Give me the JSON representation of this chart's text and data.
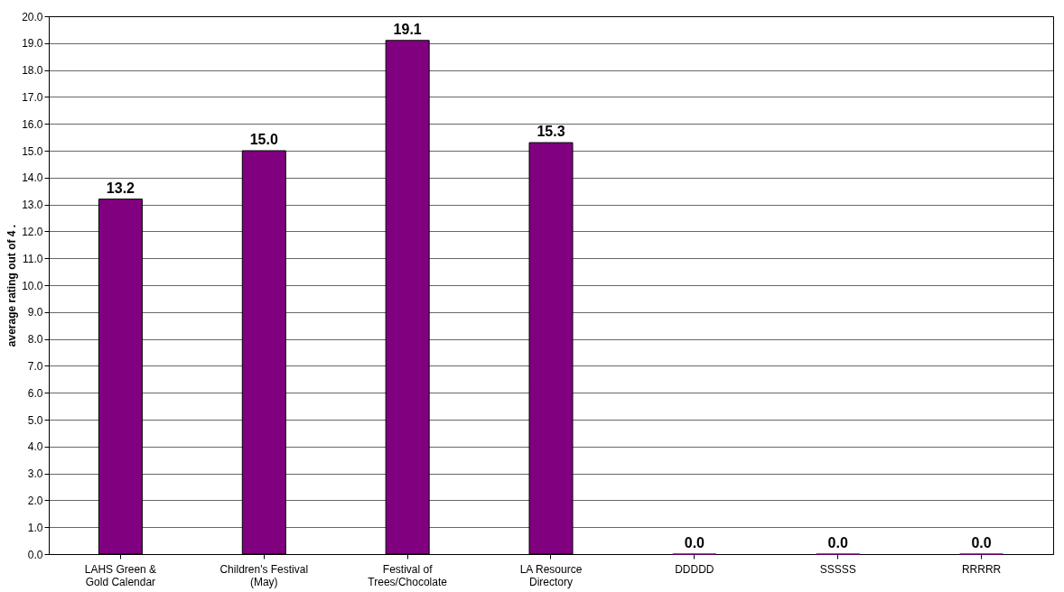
{
  "chart_data": {
    "type": "bar",
    "ylabel": "average rating out of 4 .",
    "categories": [
      "LAHS Green &\nGold Calendar",
      "Children's Festival\n(May)",
      "Festival of\nTrees/Chocolate",
      "LA Resource\nDirectory",
      "DDDDD",
      "SSSSS",
      "RRRRR"
    ],
    "values": [
      13.2,
      15.0,
      19.1,
      15.3,
      0.0,
      0.0,
      0.0
    ],
    "value_labels": [
      "13.2",
      "15.0",
      "19.1",
      "15.3",
      "0.0",
      "0.0",
      "0.0"
    ],
    "color": "#800080",
    "ylim": [
      0,
      20
    ],
    "yticks": [
      {
        "value": 0,
        "label": "0.0"
      },
      {
        "value": 1,
        "label": "1.0"
      },
      {
        "value": 2,
        "label": "2.0"
      },
      {
        "value": 3,
        "label": "3.0"
      },
      {
        "value": 4,
        "label": "4.0"
      },
      {
        "value": 5,
        "label": "5.0"
      },
      {
        "value": 6,
        "label": "6.0"
      },
      {
        "value": 7,
        "label": "7.0"
      },
      {
        "value": 8,
        "label": "8.0"
      },
      {
        "value": 9,
        "label": "9.0"
      },
      {
        "value": 10,
        "label": "10.0"
      },
      {
        "value": 11,
        "label": "11.0"
      },
      {
        "value": 12,
        "label": "12.0"
      },
      {
        "value": 13,
        "label": "13.0"
      },
      {
        "value": 14,
        "label": "14.0"
      },
      {
        "value": 15,
        "label": "15.0"
      },
      {
        "value": 16,
        "label": "16.0"
      },
      {
        "value": 17,
        "label": "17.0"
      },
      {
        "value": 18,
        "label": "18.0"
      },
      {
        "value": 19,
        "label": "19.0"
      },
      {
        "value": 20,
        "label": "20.0"
      }
    ],
    "grid": "y"
  }
}
